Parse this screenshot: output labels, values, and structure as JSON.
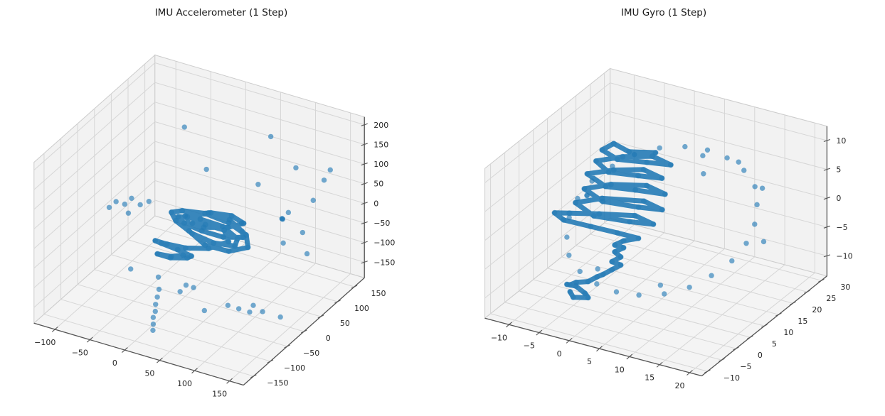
{
  "style": {
    "background": "#ffffff",
    "pane_color": "#f2f2f2",
    "floor_color": "#f4f4f4",
    "grid_color": "#d6d6d6",
    "pane_edge_color": "#cccccc",
    "axis_line_color": "#555555",
    "tick_text_color": "#262626",
    "marker_color": "#1f77b4"
  },
  "chart_data": [
    {
      "type": "scatter",
      "projection": "3d",
      "title": "IMU Accelerometer (1 Step)",
      "xlabel": "",
      "ylabel": "",
      "zlabel": "",
      "grid": true,
      "legend": "none",
      "marker_color": "#1f77b4",
      "x_ticks": [
        -100,
        -50,
        0,
        50,
        100,
        150
      ],
      "y_ticks": [
        -150,
        -100,
        -50,
        0,
        50,
        100,
        150
      ],
      "z_ticks": [
        -150,
        -100,
        -50,
        0,
        50,
        100,
        150,
        200
      ],
      "x_range": [
        -130,
        170
      ],
      "y_range": [
        -180,
        180
      ],
      "z_range": [
        -190,
        220
      ],
      "trajectory_points": [
        [
          -5,
          10,
          5
        ],
        [
          20,
          28,
          12
        ],
        [
          48,
          32,
          6
        ],
        [
          72,
          20,
          -2
        ],
        [
          84,
          -2,
          6
        ],
        [
          68,
          -28,
          18
        ],
        [
          42,
          -38,
          28
        ],
        [
          12,
          -28,
          24
        ],
        [
          -8,
          -4,
          12
        ],
        [
          12,
          20,
          -2
        ],
        [
          40,
          28,
          -12
        ],
        [
          68,
          14,
          -18
        ],
        [
          78,
          -14,
          -10
        ],
        [
          58,
          -36,
          4
        ],
        [
          30,
          -42,
          18
        ],
        [
          2,
          -32,
          28
        ],
        [
          -16,
          -8,
          22
        ],
        [
          -12,
          16,
          10
        ],
        [
          12,
          34,
          2
        ],
        [
          44,
          38,
          -8
        ],
        [
          72,
          32,
          -20
        ],
        [
          86,
          8,
          -26
        ],
        [
          72,
          -20,
          -22
        ],
        [
          44,
          -32,
          -12
        ],
        [
          16,
          -22,
          2
        ],
        [
          2,
          2,
          12
        ],
        [
          26,
          22,
          20
        ],
        [
          54,
          26,
          24
        ],
        [
          78,
          12,
          28
        ],
        [
          68,
          -14,
          32
        ],
        [
          40,
          -28,
          28
        ],
        [
          16,
          -12,
          14
        ],
        [
          26,
          6,
          2
        ],
        [
          50,
          12,
          -4
        ],
        [
          64,
          -4,
          -14
        ],
        [
          44,
          -22,
          -28
        ],
        [
          16,
          -32,
          -34
        ],
        [
          -6,
          -42,
          -28
        ],
        [
          -18,
          -52,
          -18
        ],
        [
          -4,
          -62,
          -10
        ],
        [
          18,
          -60,
          -16
        ],
        [
          34,
          -52,
          -30
        ],
        [
          24,
          -44,
          -46
        ],
        [
          2,
          -48,
          -54
        ],
        [
          -14,
          -54,
          -48
        ],
        [
          8,
          -58,
          -40
        ],
        [
          22,
          -52,
          -34
        ]
      ],
      "scatter_points": [
        [
          120,
          80,
          140
        ],
        [
          60,
          130,
          150
        ],
        [
          -30,
          60,
          180
        ],
        [
          150,
          120,
          120
        ],
        [
          170,
          60,
          150
        ],
        [
          90,
          30,
          120
        ],
        [
          40,
          -20,
          170
        ],
        [
          -80,
          -60,
          40
        ],
        [
          -75,
          -50,
          50
        ],
        [
          -65,
          -45,
          45
        ],
        [
          -60,
          -35,
          55
        ],
        [
          -50,
          -30,
          40
        ],
        [
          -40,
          -25,
          50
        ],
        [
          -55,
          -55,
          35
        ],
        [
          130,
          20,
          60
        ],
        [
          150,
          -20,
          40
        ],
        [
          110,
          60,
          20
        ],
        [
          160,
          30,
          -20
        ],
        [
          140,
          90,
          60
        ],
        [
          100,
          -40,
          80
        ],
        [
          100,
          80,
          0
        ],
        [
          120,
          100,
          -40
        ],
        [
          90,
          120,
          -20
        ],
        [
          0,
          -80,
          -80
        ],
        [
          60,
          -100,
          -60
        ],
        [
          120,
          -90,
          -90
        ],
        [
          90,
          -60,
          -120
        ],
        [
          150,
          -120,
          -60
        ],
        [
          60,
          -140,
          -40
        ],
        [
          130,
          -40,
          -130
        ],
        [
          170,
          -70,
          -100
        ],
        [
          30,
          -60,
          -100
        ],
        [
          90,
          -130,
          -80
        ],
        [
          160,
          -130,
          -30
        ],
        [
          -30,
          -100,
          -60
        ],
        [
          25,
          -130,
          -60
        ],
        [
          24,
          -133,
          -78
        ],
        [
          23,
          -136,
          -95
        ],
        [
          24,
          -139,
          -110
        ],
        [
          22,
          -141,
          -125
        ],
        [
          23,
          -143,
          -140
        ],
        [
          23,
          -144,
          -155
        ]
      ]
    },
    {
      "type": "scatter",
      "projection": "3d",
      "title": "IMU Gyro (1 Step)",
      "xlabel": "",
      "ylabel": "",
      "zlabel": "",
      "grid": true,
      "legend": "none",
      "marker_color": "#1f77b4",
      "x_ticks": [
        -10,
        -5,
        0,
        5,
        10,
        15,
        20
      ],
      "y_ticks": [
        -10,
        -5,
        0,
        5,
        10,
        15,
        20,
        25,
        30
      ],
      "z_ticks": [
        -10,
        -5,
        0,
        5,
        10
      ],
      "x_range": [
        -14,
        22
      ],
      "y_range": [
        -12,
        32
      ],
      "z_range": [
        -13.5,
        12.5
      ],
      "trajectory_points": [
        [
          3,
          12,
          10.5
        ],
        [
          0,
          9,
          11
        ],
        [
          -3,
          10,
          11.2
        ],
        [
          -4,
          8,
          10.6
        ],
        [
          -1,
          7,
          10.2
        ],
        [
          3,
          9,
          10
        ],
        [
          6,
          11,
          9.6
        ],
        [
          2,
          13,
          9.2
        ],
        [
          -2,
          11,
          8.8
        ],
        [
          -5,
          8,
          8.4
        ],
        [
          -2,
          6,
          8.1
        ],
        [
          2,
          8,
          7.8
        ],
        [
          5,
          10,
          7.4
        ],
        [
          1,
          12,
          7
        ],
        [
          -3,
          10,
          6.6
        ],
        [
          -6,
          7,
          6.3
        ],
        [
          -2,
          5,
          6
        ],
        [
          2,
          7,
          5.7
        ],
        [
          6,
          9,
          5.3
        ],
        [
          2,
          11,
          4.9
        ],
        [
          -3,
          9,
          4.5
        ],
        [
          -6,
          6,
          4.1
        ],
        [
          -2,
          4,
          3.8
        ],
        [
          3,
          6,
          3.4
        ],
        [
          6,
          8,
          3
        ],
        [
          2,
          10,
          2.6
        ],
        [
          -4,
          8,
          2.2
        ],
        [
          -7,
          5,
          1.8
        ],
        [
          -3,
          3,
          1.4
        ],
        [
          2,
          5,
          1
        ],
        [
          5,
          7,
          0.6
        ],
        [
          1,
          9,
          0.2
        ],
        [
          -4,
          7,
          -0.1
        ],
        [
          -8,
          5,
          -0.3
        ],
        [
          -10,
          4,
          -0.4
        ],
        [
          -8,
          3,
          -0.7
        ],
        [
          -4,
          4,
          -1.1
        ],
        [
          0,
          5,
          -1.5
        ],
        [
          3,
          6,
          -2
        ],
        [
          1,
          5,
          -2.6
        ],
        [
          0,
          4,
          -3.2
        ],
        [
          1,
          5,
          -3.8
        ],
        [
          0,
          4,
          -4.4
        ],
        [
          1,
          4,
          -5
        ],
        [
          0,
          3,
          -5.7
        ],
        [
          1,
          4,
          -6.4
        ],
        [
          0,
          3,
          -7.1
        ],
        [
          -1,
          2,
          -7.8
        ],
        [
          -2,
          2,
          -8.5
        ],
        [
          -3,
          1,
          -9.2
        ],
        [
          -5,
          1,
          -9.9
        ],
        [
          -6,
          1,
          -10.6
        ],
        [
          -7,
          2,
          -11.2
        ],
        [
          -6,
          3,
          -11.6
        ],
        [
          -4,
          2,
          -11.9
        ],
        [
          -3,
          1,
          -12
        ],
        [
          -5,
          0,
          -12.1
        ],
        [
          -6,
          1,
          -11.8
        ]
      ],
      "scatter_points": [
        [
          19,
          10,
          0
        ],
        [
          18.5,
          14,
          1.6
        ],
        [
          17,
          18,
          3
        ],
        [
          15,
          21.5,
          4.2
        ],
        [
          12,
          24,
          5.2
        ],
        [
          8.5,
          25.5,
          5.8
        ],
        [
          5,
          26,
          6
        ],
        [
          1.5,
          25.5,
          5.8
        ],
        [
          -2,
          24,
          5.2
        ],
        [
          -5,
          21.5,
          4.2
        ],
        [
          -7,
          18,
          3
        ],
        [
          -8.5,
          14,
          1.6
        ],
        [
          -9,
          10,
          0
        ],
        [
          -8.5,
          6,
          -1.6
        ],
        [
          -7,
          2,
          -3
        ],
        [
          -5,
          -1.5,
          -4.2
        ],
        [
          -2,
          -4,
          -5.2
        ],
        [
          1.5,
          -5.5,
          -5.8
        ],
        [
          5,
          -6,
          -6
        ],
        [
          8.5,
          -5.5,
          -5.8
        ],
        [
          12,
          -4,
          -5.2
        ],
        [
          15,
          -1.5,
          -4.2
        ],
        [
          17,
          2,
          -3
        ],
        [
          18.5,
          6,
          -1.6
        ],
        [
          8,
          18,
          9
        ],
        [
          13,
          20,
          8.5
        ],
        [
          10,
          14,
          8
        ],
        [
          -6,
          7,
          2.5
        ],
        [
          -7,
          9,
          1.5
        ],
        [
          16,
          22,
          4
        ],
        [
          9,
          1,
          -6.5
        ],
        [
          0,
          -2,
          -5
        ],
        [
          20,
          14,
          -1
        ]
      ]
    }
  ]
}
